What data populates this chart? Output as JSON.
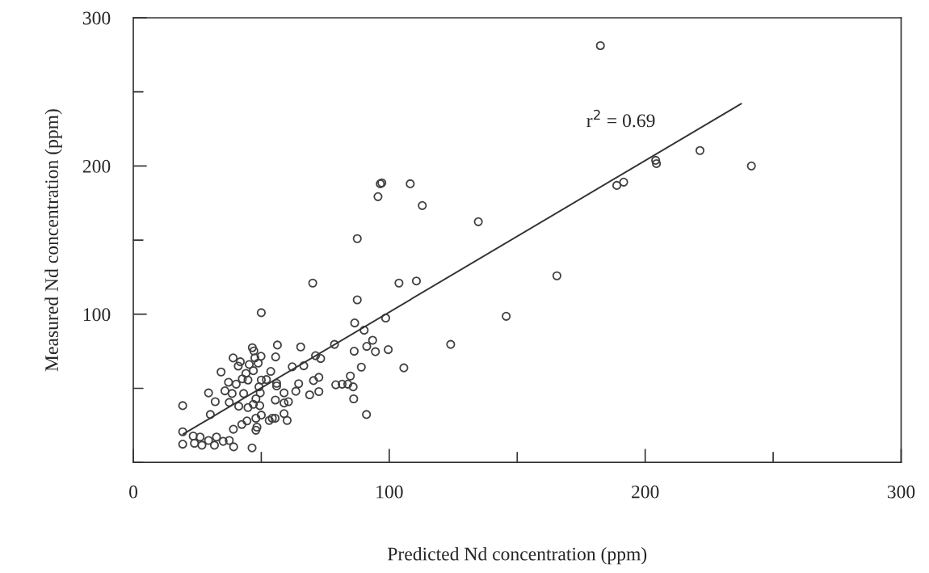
{
  "chart_data": {
    "type": "scatter",
    "xlabel": "Predicted Nd concentration (ppm)",
    "ylabel": "Measured Nd concentration (ppm)",
    "xlim": [
      0,
      300
    ],
    "ylim": [
      0,
      300
    ],
    "xticks": [
      0,
      {
        "value": 50,
        "label": null
      },
      100,
      {
        "value": 150,
        "label": null
      },
      200,
      {
        "value": 250,
        "label": null
      },
      300
    ],
    "yticks": [
      {
        "value": 0,
        "label": null
      },
      {
        "value": 50,
        "label": null
      },
      100,
      {
        "value": 150,
        "label": null
      },
      200,
      {
        "value": 250,
        "label": null
      },
      300
    ],
    "grid": false,
    "legend": false,
    "annotations": [
      "r$^{2}$ = 0.69"
    ],
    "series": [
      {
        "color": "#404040",
        "marker": "circle",
        "x": [
          70.1,
          103.8,
          110.6,
          87.5,
          50.0,
          98.6,
          86.5,
          90.2,
          93.5,
          91.2,
          94.6,
          99.6,
          105.7,
          78.6,
          86.3,
          71.2,
          73.2,
          65.4,
          56.3,
          46.5,
          47.1,
          49.9,
          55.6,
          39.0,
          41.8,
          47.5,
          48.8,
          41.0,
          45.3,
          62.1,
          66.6,
          89.1,
          34.3,
          46.9,
          53.7,
          44.0,
          84.8,
          37.2,
          42.6,
          44.8,
          50.0,
          52.0,
          40.2,
          56.0,
          56.0,
          49.1,
          70.4,
          72.5,
          64.6,
          79.1,
          81.6,
          83.8,
          85.9,
          35.8,
          38.6,
          29.4,
          43.1,
          49.6,
          58.9,
          63.5,
          72.5,
          68.9,
          86.1,
          32.0,
          37.5,
          47.9,
          55.5,
          58.9,
          60.6,
          19.3,
          41.2,
          44.8,
          46.9,
          49.4,
          30.1,
          50.0,
          58.9,
          91.1,
          47.9,
          54.3,
          53.1,
          55.4,
          60.1,
          44.4,
          42.4,
          39.1,
          48.3,
          47.9,
          19.3,
          23.4,
          26.1,
          32.5,
          29.4,
          35.1,
          37.5,
          19.3,
          23.9,
          26.8,
          31.7,
          39.2,
          46.4,
          182.5,
          95.6,
          96.5,
          97.1,
          108.2,
          112.9,
          87.5,
          134.8,
          165.5,
          145.7,
          124.0,
          188.9,
          191.6,
          204.1,
          204.4,
          221.4,
          241.5
        ],
        "values": [
          121.0,
          121.0,
          122.4,
          109.7,
          101.0,
          97.4,
          94.1,
          89.2,
          82.4,
          78.3,
          74.7,
          76.1,
          63.8,
          79.6,
          75.0,
          72.0,
          70.1,
          77.9,
          79.2,
          77.4,
          75.2,
          71.6,
          71.2,
          70.5,
          67.9,
          70.5,
          67.0,
          65.0,
          66.1,
          64.5,
          65.2,
          64.3,
          61.0,
          61.9,
          61.4,
          60.1,
          58.3,
          54.1,
          56.4,
          55.6,
          55.6,
          55.9,
          52.8,
          53.4,
          51.6,
          51.0,
          55.2,
          57.4,
          53.1,
          52.4,
          52.8,
          52.8,
          51.0,
          48.3,
          46.5,
          46.9,
          46.5,
          46.9,
          46.9,
          48.0,
          47.8,
          45.6,
          42.9,
          41.0,
          40.5,
          42.9,
          42.1,
          40.1,
          41.0,
          38.3,
          37.9,
          37.0,
          39.2,
          38.3,
          32.3,
          31.9,
          32.9,
          32.3,
          29.8,
          29.8,
          28.3,
          29.8,
          28.3,
          28.0,
          25.6,
          22.4,
          23.8,
          21.7,
          20.7,
          17.8,
          17.1,
          17.1,
          14.8,
          14.2,
          14.8,
          12.3,
          12.9,
          11.6,
          11.6,
          10.5,
          9.8,
          281.2,
          179.3,
          188.0,
          188.6,
          188.0,
          173.3,
          151.0,
          162.4,
          125.9,
          98.6,
          79.6,
          186.9,
          189.1,
          203.8,
          201.6,
          210.4,
          200.0
        ]
      },
      {
        "type": "line",
        "color": "#333333",
        "marker": "none",
        "line_style": "solid",
        "x": [
          19.5,
          237.5
        ],
        "values": [
          19.1,
          242.0
        ]
      }
    ]
  }
}
